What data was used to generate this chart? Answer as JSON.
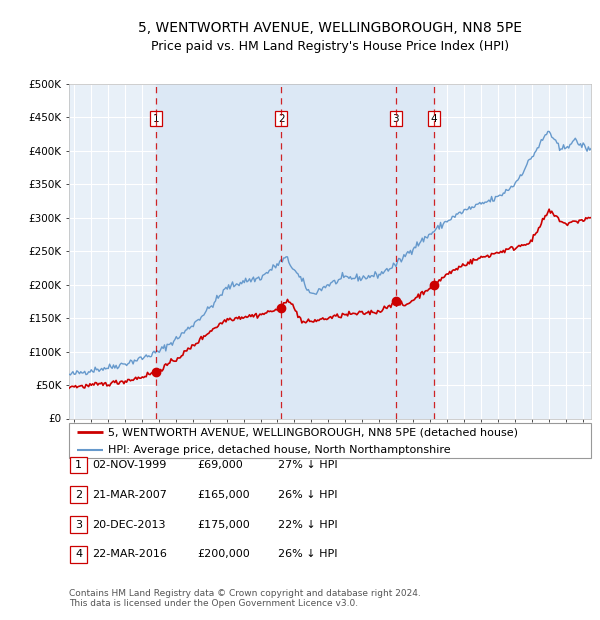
{
  "title1": "5, WENTWORTH AVENUE, WELLINGBOROUGH, NN8 5PE",
  "title2": "Price paid vs. HM Land Registry's House Price Index (HPI)",
  "background_color": "#ffffff",
  "plot_bg_outside": "#e8f0f8",
  "plot_bg_inside": "#dce8f5",
  "grid_color": "#ffffff",
  "red_line_color": "#cc0000",
  "blue_line_color": "#6699cc",
  "sale_marker_color": "#cc0000",
  "vline_color": "#cc0000",
  "ylim": [
    0,
    500000
  ],
  "yticks": [
    0,
    50000,
    100000,
    150000,
    200000,
    250000,
    300000,
    350000,
    400000,
    450000,
    500000
  ],
  "ytick_labels": [
    "£0",
    "£50K",
    "£100K",
    "£150K",
    "£200K",
    "£250K",
    "£300K",
    "£350K",
    "£400K",
    "£450K",
    "£500K"
  ],
  "xlim_start": 1994.7,
  "xlim_end": 2025.5,
  "xticks": [
    1995,
    1996,
    1997,
    1998,
    1999,
    2000,
    2001,
    2002,
    2003,
    2004,
    2005,
    2006,
    2007,
    2008,
    2009,
    2010,
    2011,
    2012,
    2013,
    2014,
    2015,
    2016,
    2017,
    2018,
    2019,
    2020,
    2021,
    2022,
    2023,
    2024,
    2025
  ],
  "sales": [
    {
      "year": 1999.84,
      "price": 69000,
      "label": "1"
    },
    {
      "year": 2007.22,
      "price": 165000,
      "label": "2"
    },
    {
      "year": 2013.97,
      "price": 175000,
      "label": "3"
    },
    {
      "year": 2016.22,
      "price": 200000,
      "label": "4"
    }
  ],
  "legend_red": "5, WENTWORTH AVENUE, WELLINGBOROUGH, NN8 5PE (detached house)",
  "legend_blue": "HPI: Average price, detached house, North Northamptonshire",
  "table_rows": [
    [
      "1",
      "02-NOV-1999",
      "£69,000",
      "27% ↓ HPI"
    ],
    [
      "2",
      "21-MAR-2007",
      "£165,000",
      "26% ↓ HPI"
    ],
    [
      "3",
      "20-DEC-2013",
      "£175,000",
      "22% ↓ HPI"
    ],
    [
      "4",
      "22-MAR-2016",
      "£200,000",
      "26% ↓ HPI"
    ]
  ],
  "footnote": "Contains HM Land Registry data © Crown copyright and database right 2024.\nThis data is licensed under the Open Government Licence v3.0.",
  "title_fontsize": 10,
  "subtitle_fontsize": 9,
  "tick_fontsize": 7.5,
  "legend_fontsize": 8,
  "table_fontsize": 8,
  "footnote_fontsize": 6.5
}
